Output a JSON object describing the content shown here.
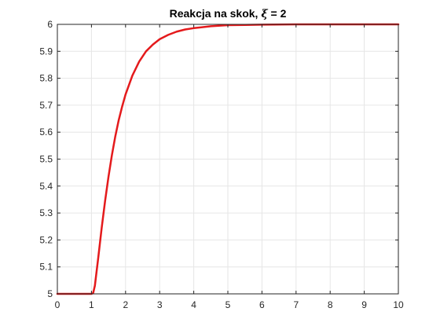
{
  "chart_data": {
    "type": "line",
    "title": {
      "prefix": "Reakcja na skok, ",
      "symbol": "ξ",
      "suffix": " = 2"
    },
    "xlabel": "",
    "ylabel": "",
    "xlim": [
      0,
      10
    ],
    "ylim": [
      5,
      6
    ],
    "x_ticks": [
      0,
      1,
      2,
      3,
      4,
      5,
      6,
      7,
      8,
      9,
      10
    ],
    "x_tick_labels": [
      "0",
      "1",
      "2",
      "3",
      "4",
      "5",
      "6",
      "7",
      "8",
      "9",
      "10"
    ],
    "y_ticks": [
      5,
      5.1,
      5.2,
      5.3,
      5.4,
      5.5,
      5.6,
      5.7,
      5.8,
      5.9,
      6
    ],
    "y_tick_labels": [
      "5",
      "5.1",
      "5.2",
      "5.3",
      "5.4",
      "5.5",
      "5.6",
      "5.7",
      "5.8",
      "5.9",
      "6"
    ],
    "grid": true,
    "legend": "none",
    "colors": {
      "line": "#e41a1c",
      "axes": "#262626",
      "grid": "#e6e6e6"
    },
    "series": [
      {
        "x": [
          0,
          0.5,
          1.0,
          1.05,
          1.1,
          1.2,
          1.3,
          1.4,
          1.5,
          1.6,
          1.7,
          1.8,
          1.9,
          2.0,
          2.2,
          2.4,
          2.6,
          2.8,
          3.0,
          3.25,
          3.5,
          3.75,
          4.0,
          4.5,
          5.0,
          5.5,
          6.0,
          7.0,
          8.0,
          9.0,
          10.0
        ],
        "y": [
          5,
          5,
          5,
          5.003,
          5.03,
          5.135,
          5.245,
          5.345,
          5.435,
          5.515,
          5.585,
          5.645,
          5.695,
          5.74,
          5.81,
          5.862,
          5.9,
          5.925,
          5.945,
          5.961,
          5.973,
          5.981,
          5.986,
          5.993,
          5.997,
          5.998,
          5.999,
          6.0,
          6.0,
          6.0,
          6.0
        ]
      }
    ]
  }
}
